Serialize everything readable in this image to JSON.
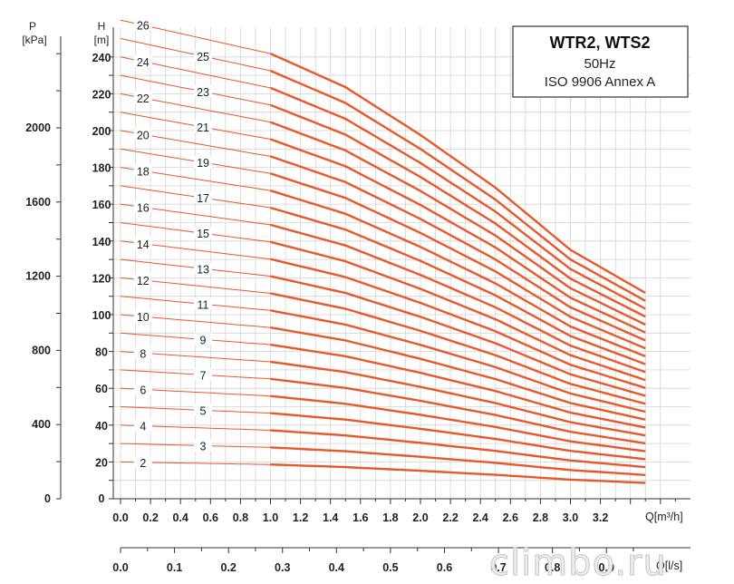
{
  "chart_data": {
    "type": "line",
    "title": "WTR2, WTS2",
    "subtitle_lines": [
      "50Hz",
      "ISO 9906  Annex A"
    ],
    "x_label": "Q[m³/h]",
    "x2_label": "Q[l/s]",
    "y_label": "H",
    "y_unit": "[m]",
    "p_label": "P",
    "p_unit": "[kPa]",
    "xlim": [
      0,
      3.8
    ],
    "ylim": [
      0,
      250
    ],
    "x_ticks": [
      "0.0",
      "0.2",
      "0.4",
      "0.6",
      "0.8",
      "1.0",
      "1.2",
      "1.4",
      "1.6",
      "1.8",
      "2.0",
      "2.2",
      "2.4",
      "2.6",
      "2.8",
      "3.0",
      "3.2"
    ],
    "x2_ticks": [
      "0.0",
      "0.1",
      "0.2",
      "0.3",
      "0.4",
      "0.5",
      "0.6",
      "0.7",
      "0.8",
      "0.9"
    ],
    "y_ticks": [
      "20",
      "40",
      "60",
      "80",
      "100",
      "120",
      "140",
      "160",
      "180",
      "200",
      "220",
      "240"
    ],
    "p_ticks": [
      "0",
      "400",
      "800",
      "1200",
      "1600",
      "2000"
    ],
    "grid": true,
    "per_stage_head_m": {
      "q_m3h": [
        0.0,
        1.0,
        1.5,
        2.0,
        2.5,
        3.0,
        3.5
      ],
      "h": [
        10.0,
        9.3,
        8.6,
        7.6,
        6.5,
        5.2,
        4.3
      ]
    },
    "series": [
      {
        "name": "2",
        "stages": 2
      },
      {
        "name": "3",
        "stages": 3
      },
      {
        "name": "4",
        "stages": 4
      },
      {
        "name": "5",
        "stages": 5
      },
      {
        "name": "6",
        "stages": 6
      },
      {
        "name": "7",
        "stages": 7
      },
      {
        "name": "8",
        "stages": 8
      },
      {
        "name": "9",
        "stages": 9
      },
      {
        "name": "10",
        "stages": 10
      },
      {
        "name": "11",
        "stages": 11
      },
      {
        "name": "12",
        "stages": 12
      },
      {
        "name": "13",
        "stages": 13
      },
      {
        "name": "14",
        "stages": 14
      },
      {
        "name": "15",
        "stages": 15
      },
      {
        "name": "16",
        "stages": 16
      },
      {
        "name": "17",
        "stages": 17
      },
      {
        "name": "18",
        "stages": 18
      },
      {
        "name": "19",
        "stages": 19
      },
      {
        "name": "20",
        "stages": 20
      },
      {
        "name": "21",
        "stages": 21
      },
      {
        "name": "22",
        "stages": 22
      },
      {
        "name": "23",
        "stages": 23
      },
      {
        "name": "24",
        "stages": 24
      },
      {
        "name": "25",
        "stages": 25
      },
      {
        "name": "26",
        "stages": 26
      }
    ],
    "line_color": "#e8582a",
    "label_flow_left_m3h": 0.15,
    "label_flow_right_m3h": 0.55,
    "thin_until_m3h": 1.0,
    "curve_end_m3h": 3.5
  },
  "watermark": "climbo.ru"
}
